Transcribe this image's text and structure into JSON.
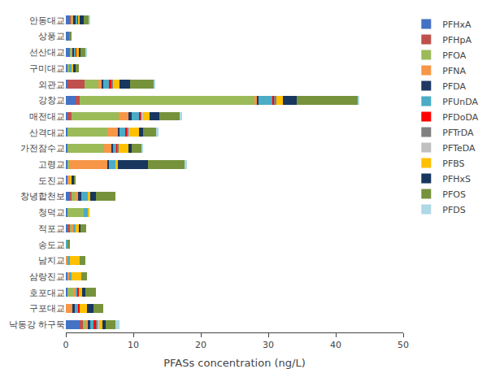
{
  "chart_data": {
    "type": "bar",
    "orientation": "horizontal",
    "stacked": true,
    "xlabel": "PFASs concentration (ng/L)",
    "categories": [
      "안동대교",
      "상풍교",
      "선산대교",
      "구미대교",
      "외관교",
      "강창교",
      "매전대교",
      "산격대교",
      "가전잠수교",
      "고령교",
      "도진교",
      "창녕합천보",
      "청덕교",
      "적포교",
      "송도교",
      "남지교",
      "삼랑진교",
      "호포대교",
      "구포대교",
      "낙동강 하구둑"
    ],
    "series": [
      {
        "name": "PFHxA",
        "color": "#4472C4",
        "values": [
          0.5,
          0.5,
          0.5,
          0.2,
          0.3,
          1.5,
          0.3,
          0.2,
          0.2,
          0.3,
          0.3,
          0.5,
          0.2,
          0.3,
          0.0,
          0.0,
          0.2,
          0.2,
          0.0,
          2.0
        ]
      },
      {
        "name": "PFHpA",
        "color": "#C0504D",
        "values": [
          0.2,
          0.0,
          0.2,
          0.0,
          2.5,
          0.5,
          0.5,
          0.0,
          0.0,
          0.0,
          0.0,
          0.3,
          0.0,
          0.3,
          0.0,
          0.0,
          0.0,
          0.0,
          0.0,
          0.5
        ]
      },
      {
        "name": "PFOA",
        "color": "#9BBB59",
        "values": [
          0.3,
          0.0,
          0.2,
          0.3,
          2.0,
          26.0,
          7.0,
          6.0,
          5.5,
          0.3,
          0.0,
          0.5,
          2.5,
          0.3,
          0.0,
          0.0,
          0.0,
          1.0,
          0.0,
          0.5
        ]
      },
      {
        "name": "PFNA",
        "color": "#F79646",
        "values": [
          0.1,
          0.0,
          0.1,
          0.0,
          0.5,
          0.3,
          1.5,
          1.5,
          1.0,
          5.5,
          0.3,
          0.5,
          0.0,
          0.2,
          0.0,
          0.3,
          0.3,
          0.2,
          1.0,
          0.3
        ]
      },
      {
        "name": "PFDA",
        "color": "#1F3864",
        "values": [
          0.3,
          0.0,
          0.2,
          0.0,
          0.3,
          0.3,
          0.5,
          0.3,
          0.3,
          0.3,
          0.0,
          0.5,
          0.0,
          0.0,
          0.0,
          0.0,
          0.0,
          0.0,
          0.3,
          0.3
        ]
      },
      {
        "name": "PFUnDA",
        "color": "#4BACC6",
        "values": [
          0.3,
          0.0,
          0.3,
          0.3,
          0.8,
          2.0,
          1.0,
          0.8,
          0.5,
          1.0,
          0.0,
          1.0,
          0.5,
          0.3,
          0.3,
          0.3,
          0.3,
          0.3,
          0.5,
          0.5
        ]
      },
      {
        "name": "PFDoDA",
        "color": "#FF0000",
        "values": [
          0.1,
          0.0,
          0.1,
          0.0,
          0.3,
          0.3,
          0.3,
          0.3,
          0.2,
          0.0,
          0.0,
          0.0,
          0.0,
          0.0,
          0.0,
          0.0,
          0.0,
          0.2,
          0.3,
          0.3
        ]
      },
      {
        "name": "PFTrDA",
        "color": "#808080",
        "values": [
          0.0,
          0.0,
          0.0,
          0.0,
          0.3,
          0.3,
          0.2,
          0.2,
          0.1,
          0.0,
          0.0,
          0.0,
          0.0,
          0.0,
          0.0,
          0.0,
          0.0,
          0.0,
          0.0,
          0.3
        ]
      },
      {
        "name": "PFTeDA",
        "color": "#C0C0C0",
        "values": [
          0.0,
          0.0,
          0.0,
          0.0,
          0.0,
          0.0,
          0.1,
          0.1,
          0.0,
          0.0,
          0.0,
          0.0,
          0.0,
          0.0,
          0.0,
          0.0,
          0.0,
          0.0,
          0.0,
          0.2
        ]
      },
      {
        "name": "PFBS",
        "color": "#FFC000",
        "values": [
          0.3,
          0.0,
          0.3,
          0.3,
          1.0,
          1.0,
          1.0,
          1.5,
          1.5,
          0.3,
          0.3,
          0.3,
          0.3,
          0.5,
          0.0,
          1.5,
          1.5,
          0.5,
          1.0,
          0.5
        ]
      },
      {
        "name": "PFHxS",
        "color": "#17375E",
        "values": [
          0.5,
          0.0,
          0.3,
          0.3,
          1.5,
          2.0,
          1.5,
          0.5,
          0.5,
          4.5,
          0.3,
          0.8,
          0.0,
          0.3,
          0.0,
          0.0,
          0.0,
          0.5,
          1.0,
          0.5
        ]
      },
      {
        "name": "PFOS",
        "color": "#76933C",
        "values": [
          0.8,
          0.3,
          0.8,
          0.5,
          3.5,
          9.0,
          3.0,
          2.0,
          1.5,
          5.5,
          0.3,
          3.0,
          0.0,
          0.8,
          0.3,
          0.8,
          0.8,
          1.5,
          1.5,
          1.5
        ]
      },
      {
        "name": "PFDS",
        "color": "#ADD8E6",
        "values": [
          0.1,
          0.0,
          0.1,
          0.0,
          0.3,
          0.3,
          0.3,
          0.3,
          0.2,
          0.2,
          0.0,
          0.0,
          0.0,
          0.0,
          0.0,
          0.0,
          0.0,
          0.0,
          0.0,
          0.5
        ]
      }
    ],
    "xlim": [
      0,
      50
    ],
    "xticks": [
      0,
      10,
      20,
      30,
      40,
      50
    ],
    "grid": false,
    "legend": "upper right"
  }
}
